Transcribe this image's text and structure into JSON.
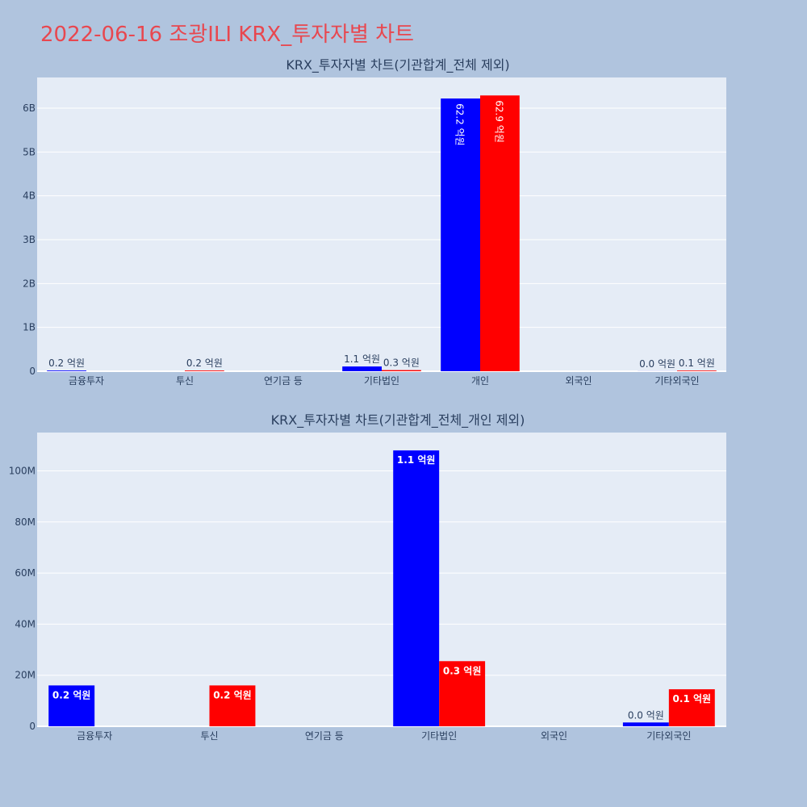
{
  "page": {
    "title": "2022-06-16 조광ILI KRX_투자자별 차트"
  },
  "colors": {
    "background": "#b0c4de",
    "plot_bg": "#e5ecf6",
    "title": "#e8474f",
    "text": "#2a3f5f",
    "buy": "#0000ff",
    "sell": "#ff0000"
  },
  "chart_data": [
    {
      "type": "bar",
      "title": "KRX_투자자별 차트(기관합계_전체 제외)",
      "categories": [
        "금융투자",
        "투신",
        "연기금 등",
        "기타법인",
        "개인",
        "외국인",
        "기타외국인"
      ],
      "ylim": [
        0,
        6700000000
      ],
      "yticks": [
        0,
        1000000000,
        2000000000,
        3000000000,
        4000000000,
        5000000000,
        6000000000
      ],
      "ytick_labels": [
        "0",
        "1B",
        "2B",
        "3B",
        "4B",
        "5B",
        "6B"
      ],
      "grid": true,
      "series": [
        {
          "color": "#0000ff",
          "values": [
            16000000,
            0,
            0,
            108000000,
            6220000000,
            0,
            1500000
          ],
          "labels": [
            "0.2 억원",
            "",
            "",
            "1.1 억원",
            "62.2 억원",
            "",
            "0.0 억원"
          ]
        },
        {
          "color": "#ff0000",
          "values": [
            0,
            16000000,
            0,
            25500000,
            6290000000,
            0,
            14500000
          ],
          "labels": [
            "",
            "0.2 억원",
            "",
            "0.3 억원",
            "62.9 억원",
            "",
            "0.1 억원"
          ]
        }
      ]
    },
    {
      "type": "bar",
      "title": "KRX_투자자별 차트(기관합계_전체_개인 제외)",
      "categories": [
        "금융투자",
        "투신",
        "연기금 등",
        "기타법인",
        "외국인",
        "기타외국인"
      ],
      "ylim": [
        0,
        115000000
      ],
      "yticks": [
        0,
        20000000,
        40000000,
        60000000,
        80000000,
        100000000
      ],
      "ytick_labels": [
        "0",
        "20M",
        "40M",
        "60M",
        "80M",
        "100M"
      ],
      "grid": true,
      "series": [
        {
          "color": "#0000ff",
          "values": [
            16000000,
            0,
            0,
            108000000,
            0,
            1500000
          ],
          "labels": [
            "0.2 억원",
            "",
            "",
            "1.1 억원",
            "",
            "0.0 억원"
          ]
        },
        {
          "color": "#ff0000",
          "values": [
            0,
            16000000,
            0,
            25500000,
            0,
            14500000
          ],
          "labels": [
            "",
            "0.2 억원",
            "",
            "0.3 억원",
            "",
            "0.1 억원"
          ]
        }
      ]
    }
  ]
}
